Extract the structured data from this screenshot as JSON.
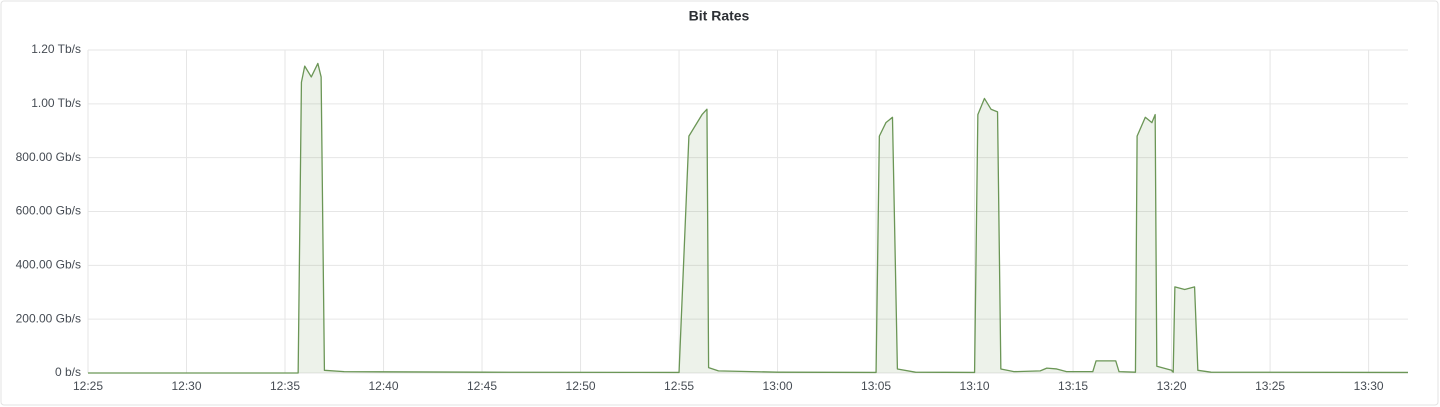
{
  "chart_data": {
    "type": "line",
    "title": "Bit Rates",
    "x": [
      "12:25:00",
      "12:35:40",
      "12:35:50",
      "12:36:00",
      "12:36:20",
      "12:36:40",
      "12:36:50",
      "12:37:00",
      "12:38:00",
      "12:45:00",
      "12:55:00",
      "12:55:30",
      "12:55:50",
      "12:56:10",
      "12:56:25",
      "12:56:30",
      "12:57:00",
      "13:00:00",
      "13:05:00",
      "13:05:10",
      "13:05:30",
      "13:05:50",
      "13:06:05",
      "13:07:00",
      "13:10:00",
      "13:10:10",
      "13:10:30",
      "13:10:50",
      "13:11:10",
      "13:11:20",
      "13:12:00",
      "13:13:20",
      "13:13:40",
      "13:14:10",
      "13:14:40",
      "13:16:00",
      "13:16:10",
      "13:17:10",
      "13:17:20",
      "13:18:10",
      "13:18:15",
      "13:18:40",
      "13:19:00",
      "13:19:10",
      "13:19:15",
      "13:20:00",
      "13:20:05",
      "13:20:10",
      "13:20:40",
      "13:21:10",
      "13:21:20",
      "13:22:00",
      "13:32:00"
    ],
    "series": [
      {
        "name": "Bit Rates",
        "color": "#6b9656",
        "values": [
          0,
          0,
          1080000000000,
          1140000000000,
          1100000000000,
          1150000000000,
          1100000000000,
          10000000000,
          5000000000,
          3000000000,
          2000000000,
          880000000000,
          920000000000,
          960000000000,
          980000000000,
          20000000000,
          8000000000,
          3000000000,
          2000000000,
          880000000000,
          930000000000,
          950000000000,
          15000000000,
          3000000000,
          2000000000,
          960000000000,
          1020000000000,
          980000000000,
          970000000000,
          15000000000,
          5000000000,
          8000000000,
          18000000000,
          15000000000,
          5000000000,
          5000000000,
          45000000000,
          45000000000,
          5000000000,
          3000000000,
          880000000000,
          950000000000,
          930000000000,
          960000000000,
          25000000000,
          10000000000,
          3000000000,
          320000000000,
          310000000000,
          320000000000,
          10000000000,
          3000000000,
          2000000000
        ]
      }
    ],
    "xlim": [
      "12:25:00",
      "13:32:00"
    ],
    "xticks": [
      "12:25",
      "12:30",
      "12:35",
      "12:40",
      "12:45",
      "12:50",
      "12:55",
      "13:00",
      "13:05",
      "13:10",
      "13:15",
      "13:20",
      "13:25",
      "13:30"
    ],
    "ylim": [
      0,
      1200000000000
    ],
    "yticks": [
      {
        "value": 0,
        "label": "0 b/s"
      },
      {
        "value": 200000000000,
        "label": "200.00 Gb/s"
      },
      {
        "value": 400000000000,
        "label": "400.00 Gb/s"
      },
      {
        "value": 600000000000,
        "label": "600.00 Gb/s"
      },
      {
        "value": 800000000000,
        "label": "800.00 Gb/s"
      },
      {
        "value": 1000000000000,
        "label": "1.00 Tb/s"
      },
      {
        "value": 1200000000000,
        "label": "1.20 Tb/s"
      }
    ],
    "grid": true,
    "fill": true
  }
}
